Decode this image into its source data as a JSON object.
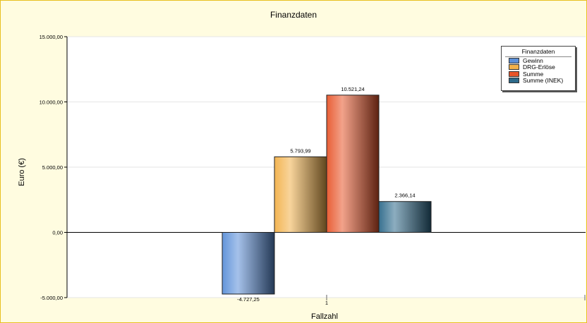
{
  "chart_data": {
    "type": "bar",
    "title": "Finanzdaten",
    "xlabel": "Fallzahl",
    "ylabel": "Euro (€)",
    "categories": [
      "1"
    ],
    "ylim": [
      -5000,
      15000
    ],
    "yticks": [
      -5000,
      0,
      5000,
      10000,
      15000
    ],
    "ytick_labels": [
      "-5.000,00",
      "0,00",
      "5.000,00",
      "10.000,00",
      "15.000,00"
    ],
    "grid": true,
    "legend": {
      "title": "Finanzdaten",
      "position": "top-right"
    },
    "series": [
      {
        "name": "Gewinn",
        "values": [
          -4727.25
        ],
        "label": "-4.727,25",
        "color": "#5b8fd8"
      },
      {
        "name": "DRG-Erlöse",
        "values": [
          5793.99
        ],
        "label": "5.793,99",
        "color": "#f2b14a"
      },
      {
        "name": "Summe",
        "values": [
          10521.24
        ],
        "label": "10.521,24",
        "color": "#e8552a"
      },
      {
        "name": "Summe (INEK)",
        "values": [
          2366.14
        ],
        "label": "2.366,14",
        "color": "#2d6a8a"
      }
    ]
  }
}
